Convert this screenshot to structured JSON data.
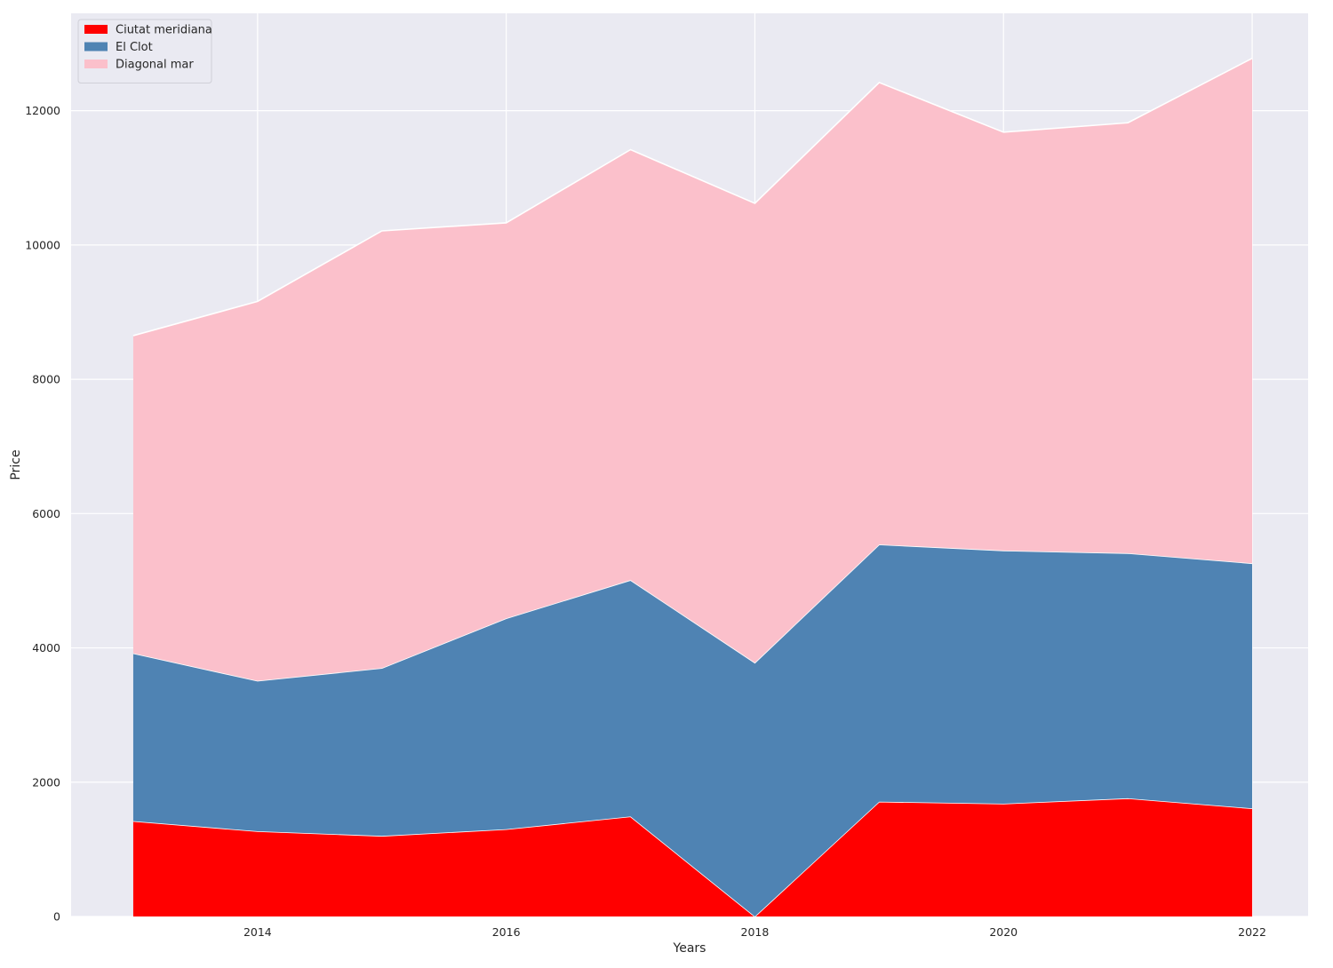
{
  "chart_data": {
    "type": "area",
    "stacked": true,
    "title": "",
    "xlabel": "Years",
    "ylabel": "Price",
    "x": [
      2013,
      2014,
      2015,
      2016,
      2017,
      2018,
      2019,
      2020,
      2021,
      2022
    ],
    "xlim": [
      2012.5,
      2022.45
    ],
    "ylim": [
      0,
      13450
    ],
    "x_ticks": [
      2014,
      2016,
      2018,
      2020,
      2022
    ],
    "y_ticks": [
      0,
      2000,
      4000,
      6000,
      8000,
      10000,
      12000
    ],
    "grid": true,
    "background": "#eaeaf2",
    "legend_position": "upper left",
    "series": [
      {
        "name": "Ciutat meridiana",
        "color": "#ff0000",
        "values": [
          1420,
          1270,
          1200,
          1300,
          1490,
          0,
          1710,
          1680,
          1760,
          1610
        ]
      },
      {
        "name": "El Clot",
        "color": "#4f83b3",
        "values": [
          2500,
          2240,
          2500,
          3140,
          3520,
          3780,
          3830,
          3770,
          3650,
          3650
        ]
      },
      {
        "name": "Diagonal mar",
        "color": "#fbc0cb",
        "values": [
          4730,
          5650,
          6510,
          5890,
          6410,
          6840,
          6880,
          6230,
          6410,
          7520
        ]
      }
    ]
  }
}
